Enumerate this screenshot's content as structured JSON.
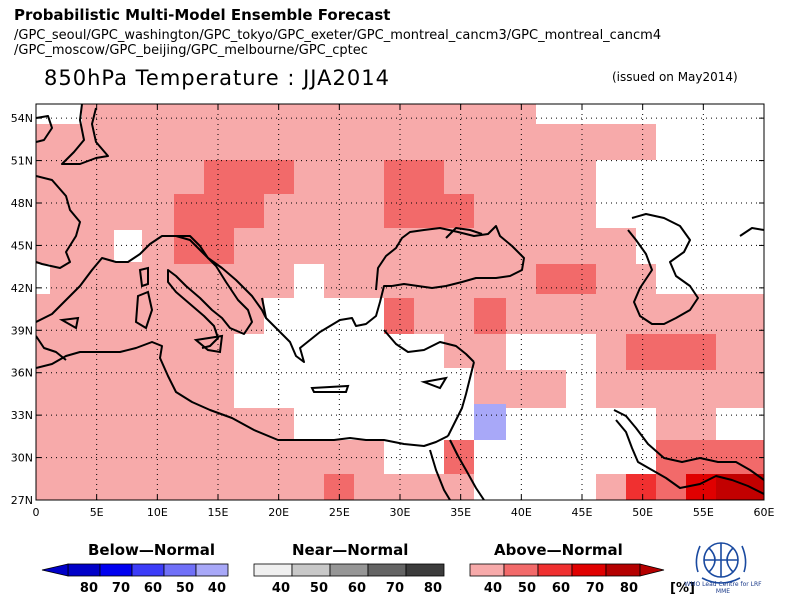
{
  "header": {
    "title": "Probabilistic Multi-Model Ensemble Forecast",
    "sources_line1": "/GPC_seoul/GPC_washington/GPC_tokyo/GPC_exeter/GPC_montreal_cancm3/GPC_montreal_cancm4",
    "sources_line2": "/GPC_moscow/GPC_beijing/GPC_melbourne/GPC_cptec",
    "variable": "850hPa Temperature : JJA2014",
    "issued": "(issued on May2014)"
  },
  "map": {
    "lat_labels": [
      "54N",
      "51N",
      "48N",
      "45N",
      "42N",
      "39N",
      "36N",
      "33N",
      "30N",
      "27N"
    ],
    "lon_labels": [
      "0",
      "5E",
      "10E",
      "15E",
      "20E",
      "25E",
      "30E",
      "35E",
      "40E",
      "45E",
      "50E",
      "55E",
      "60E"
    ],
    "lon_range": [
      0,
      60
    ],
    "lat_range": [
      27,
      55
    ],
    "grid": "dotted",
    "category_colors": {
      "above_40": "#f7aaaa",
      "above_50": "#f26a6a",
      "above_60": "#f03030",
      "above_70": "#e00000",
      "above_80": "#b40000",
      "below_40": "#a8a8f8",
      "none": "#ffffff"
    }
  },
  "legend": {
    "below": {
      "title": "Below—Normal",
      "ticks": [
        "80",
        "70",
        "60",
        "50",
        "40"
      ],
      "colors": [
        "#0000c8",
        "#0000f0",
        "#3c3cf8",
        "#7070f8",
        "#a8a8f8"
      ]
    },
    "near": {
      "title": "Near—Normal",
      "ticks": [
        "40",
        "50",
        "60",
        "70",
        "80"
      ],
      "colors": [
        "#f0f0f0",
        "#c8c8c8",
        "#969696",
        "#646464",
        "#3c3c3c"
      ]
    },
    "above": {
      "title": "Above—Normal",
      "ticks": [
        "40",
        "50",
        "60",
        "70",
        "80"
      ],
      "unit": "[%]",
      "colors": [
        "#f7aaaa",
        "#f26a6a",
        "#f03030",
        "#e00000",
        "#b40000"
      ]
    }
  },
  "logo": {
    "text": "WMO Lead Centre for LRF MME"
  }
}
